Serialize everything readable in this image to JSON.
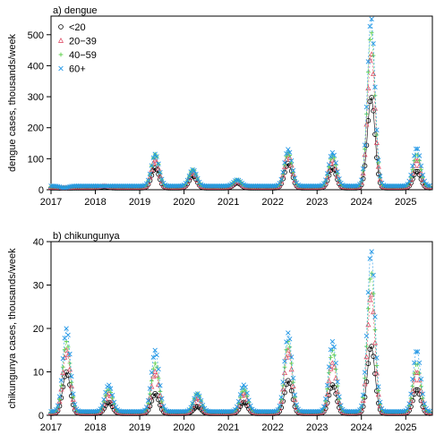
{
  "chart_data": [
    {
      "type": "scatter",
      "title": "a) dengue",
      "ylabel": "dengue cases, thousands/week",
      "xlabel": "",
      "x_ticks": [
        "2017",
        "2018",
        "2019",
        "2020",
        "2021",
        "2022",
        "2023",
        "2024",
        "2025"
      ],
      "y_ticks": [
        "0",
        "100",
        "200",
        "300",
        "400",
        "500"
      ],
      "xlim": [
        2017,
        2025.6
      ],
      "ylim": [
        0,
        560
      ],
      "legend_position": "top-left",
      "legend": [
        "<20",
        "20−39",
        "40−59",
        "60+"
      ],
      "grid": false,
      "series": [
        {
          "name": "<20",
          "marker": "circle",
          "color": "#000000",
          "peaks": [
            [
              2017.3,
              5
            ],
            [
              2018.2,
              10
            ],
            [
              2019.35,
              70
            ],
            [
              2020.2,
              45
            ],
            [
              2021.2,
              22
            ],
            [
              2022.35,
              85
            ],
            [
              2023.35,
              70
            ],
            [
              2024.22,
              300
            ],
            [
              2025.25,
              60
            ]
          ]
        },
        {
          "name": "20−39",
          "marker": "triangle",
          "color": "#df536b",
          "peaks": [
            [
              2017.3,
              6
            ],
            [
              2018.2,
              12
            ],
            [
              2019.35,
              95
            ],
            [
              2020.2,
              58
            ],
            [
              2021.2,
              28
            ],
            [
              2022.35,
              110
            ],
            [
              2023.35,
              95
            ],
            [
              2024.22,
              440
            ],
            [
              2025.25,
              95
            ]
          ]
        },
        {
          "name": "40−59",
          "marker": "plus",
          "color": "#61d04f",
          "peaks": [
            [
              2017.3,
              6
            ],
            [
              2018.2,
              12
            ],
            [
              2019.35,
              115
            ],
            [
              2020.2,
              65
            ],
            [
              2021.2,
              32
            ],
            [
              2022.35,
              120
            ],
            [
              2023.35,
              110
            ],
            [
              2024.22,
              510
            ],
            [
              2025.25,
              115
            ]
          ]
        },
        {
          "name": "60+",
          "marker": "x",
          "color": "#2297e6",
          "peaks": [
            [
              2017.3,
              6
            ],
            [
              2018.2,
              12
            ],
            [
              2019.35,
              115
            ],
            [
              2020.2,
              65
            ],
            [
              2021.2,
              32
            ],
            [
              2022.35,
              130
            ],
            [
              2023.35,
              120
            ],
            [
              2024.22,
              555
            ],
            [
              2025.25,
              135
            ]
          ]
        }
      ]
    },
    {
      "type": "scatter",
      "title": "b) chikungunya",
      "ylabel": "chikungunya cases, thousands/week",
      "xlabel": "",
      "x_ticks": [
        "2017",
        "2018",
        "2019",
        "2020",
        "2021",
        "2022",
        "2023",
        "2024",
        "2025"
      ],
      "y_ticks": [
        "0",
        "10",
        "20",
        "30",
        "40"
      ],
      "xlim": [
        2017,
        2025.6
      ],
      "ylim": [
        0,
        40
      ],
      "grid": false,
      "series": [
        {
          "name": "<20",
          "marker": "circle",
          "color": "#000000",
          "peaks": [
            [
              2017.35,
              10
            ],
            [
              2018.3,
              3
            ],
            [
              2019.35,
              5
            ],
            [
              2020.3,
              2
            ],
            [
              2021.35,
              3
            ],
            [
              2022.35,
              8
            ],
            [
              2023.35,
              7
            ],
            [
              2024.22,
              16
            ],
            [
              2025.25,
              6
            ]
          ]
        },
        {
          "name": "20−39",
          "marker": "triangle",
          "color": "#df536b",
          "peaks": [
            [
              2017.35,
              15
            ],
            [
              2018.3,
              5
            ],
            [
              2019.35,
              10
            ],
            [
              2020.3,
              4
            ],
            [
              2021.35,
              5
            ],
            [
              2022.35,
              15
            ],
            [
              2023.35,
              12
            ],
            [
              2024.22,
              28
            ],
            [
              2025.25,
              10
            ]
          ]
        },
        {
          "name": "40−59",
          "marker": "plus",
          "color": "#61d04f",
          "peaks": [
            [
              2017.35,
              17
            ],
            [
              2018.3,
              6
            ],
            [
              2019.35,
              12
            ],
            [
              2020.3,
              5
            ],
            [
              2021.35,
              6
            ],
            [
              2022.35,
              17
            ],
            [
              2023.35,
              15
            ],
            [
              2024.22,
              33
            ],
            [
              2025.25,
              12
            ]
          ]
        },
        {
          "name": "60+",
          "marker": "x",
          "color": "#2297e6",
          "peaks": [
            [
              2017.35,
              20
            ],
            [
              2018.3,
              7
            ],
            [
              2019.35,
              15
            ],
            [
              2020.3,
              5
            ],
            [
              2021.35,
              7
            ],
            [
              2022.35,
              19
            ],
            [
              2023.35,
              17
            ],
            [
              2024.22,
              38
            ],
            [
              2025.25,
              15
            ]
          ]
        }
      ]
    }
  ]
}
